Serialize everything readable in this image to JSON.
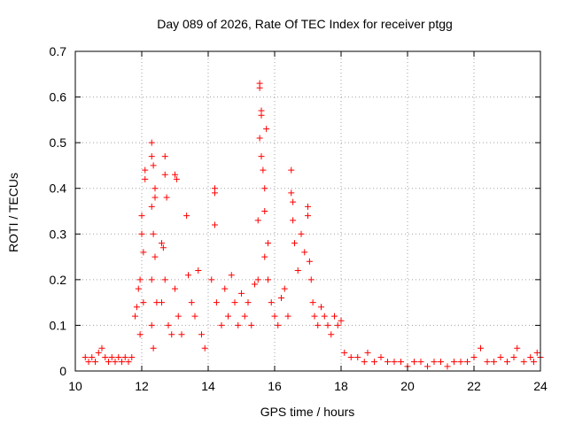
{
  "chart_data": {
    "type": "scatter",
    "title": "Day 089 of 2026, Rate Of TEC Index for receiver ptgg",
    "xlabel": "GPS time / hours",
    "ylabel": "ROTI / TECUs",
    "xlim": [
      10,
      24
    ],
    "ylim": [
      0,
      0.7
    ],
    "xticks": [
      10,
      12,
      14,
      16,
      18,
      20,
      22,
      24
    ],
    "yticks": [
      0,
      0.1,
      0.2,
      0.3,
      0.4,
      0.5,
      0.6,
      0.7
    ],
    "xtick_labels": [
      "10",
      "12",
      "14",
      "16",
      "18",
      "20",
      "22",
      "24"
    ],
    "ytick_labels": [
      "0",
      "0.1",
      "0.2",
      "0.3",
      "0.4",
      "0.5",
      "0.6",
      "0.7"
    ],
    "grid": true,
    "marker": "plus",
    "color": "#ff0000",
    "series": [
      {
        "points": [
          [
            10.3,
            0.03
          ],
          [
            10.4,
            0.02
          ],
          [
            10.5,
            0.03
          ],
          [
            10.6,
            0.02
          ],
          [
            10.7,
            0.04
          ],
          [
            10.8,
            0.05
          ],
          [
            10.9,
            0.03
          ],
          [
            11.0,
            0.02
          ],
          [
            11.1,
            0.03
          ],
          [
            11.2,
            0.02
          ],
          [
            11.3,
            0.03
          ],
          [
            11.4,
            0.02
          ],
          [
            11.5,
            0.03
          ],
          [
            11.6,
            0.02
          ],
          [
            11.7,
            0.03
          ],
          [
            11.8,
            0.12
          ],
          [
            11.85,
            0.14
          ],
          [
            11.9,
            0.18
          ],
          [
            11.95,
            0.2
          ],
          [
            12.0,
            0.3
          ],
          [
            12.0,
            0.34
          ],
          [
            12.05,
            0.26
          ],
          [
            12.1,
            0.44
          ],
          [
            12.1,
            0.42
          ],
          [
            12.05,
            0.15
          ],
          [
            11.95,
            0.08
          ],
          [
            12.3,
            0.5
          ],
          [
            12.3,
            0.47
          ],
          [
            12.35,
            0.45
          ],
          [
            12.4,
            0.4
          ],
          [
            12.4,
            0.38
          ],
          [
            12.3,
            0.36
          ],
          [
            12.35,
            0.3
          ],
          [
            12.4,
            0.25
          ],
          [
            12.3,
            0.2
          ],
          [
            12.45,
            0.15
          ],
          [
            12.3,
            0.1
          ],
          [
            12.35,
            0.05
          ],
          [
            12.6,
            0.28
          ],
          [
            12.65,
            0.27
          ],
          [
            12.7,
            0.47
          ],
          [
            12.7,
            0.43
          ],
          [
            12.75,
            0.38
          ],
          [
            12.7,
            0.2
          ],
          [
            12.6,
            0.15
          ],
          [
            12.8,
            0.1
          ],
          [
            12.9,
            0.08
          ],
          [
            13.0,
            0.43
          ],
          [
            13.05,
            0.42
          ],
          [
            13.0,
            0.18
          ],
          [
            13.1,
            0.12
          ],
          [
            13.2,
            0.08
          ],
          [
            13.35,
            0.34
          ],
          [
            13.4,
            0.21
          ],
          [
            13.5,
            0.15
          ],
          [
            13.6,
            0.12
          ],
          [
            13.7,
            0.22
          ],
          [
            13.8,
            0.08
          ],
          [
            13.9,
            0.05
          ],
          [
            14.1,
            0.2
          ],
          [
            14.2,
            0.4
          ],
          [
            14.2,
            0.39
          ],
          [
            14.2,
            0.32
          ],
          [
            14.25,
            0.15
          ],
          [
            14.4,
            0.1
          ],
          [
            14.5,
            0.18
          ],
          [
            14.6,
            0.12
          ],
          [
            14.7,
            0.21
          ],
          [
            14.8,
            0.15
          ],
          [
            14.9,
            0.1
          ],
          [
            15.0,
            0.17
          ],
          [
            15.1,
            0.12
          ],
          [
            15.2,
            0.15
          ],
          [
            15.3,
            0.1
          ],
          [
            15.4,
            0.19
          ],
          [
            15.5,
            0.2
          ],
          [
            15.5,
            0.33
          ],
          [
            15.55,
            0.63
          ],
          [
            15.55,
            0.62
          ],
          [
            15.6,
            0.57
          ],
          [
            15.6,
            0.56
          ],
          [
            15.55,
            0.51
          ],
          [
            15.6,
            0.47
          ],
          [
            15.65,
            0.44
          ],
          [
            15.7,
            0.4
          ],
          [
            15.75,
            0.53
          ],
          [
            15.7,
            0.35
          ],
          [
            15.8,
            0.28
          ],
          [
            15.7,
            0.25
          ],
          [
            15.8,
            0.2
          ],
          [
            15.9,
            0.15
          ],
          [
            16.0,
            0.12
          ],
          [
            16.1,
            0.1
          ],
          [
            16.2,
            0.16
          ],
          [
            16.3,
            0.18
          ],
          [
            16.4,
            0.12
          ],
          [
            16.5,
            0.44
          ],
          [
            16.5,
            0.39
          ],
          [
            16.55,
            0.37
          ],
          [
            16.55,
            0.33
          ],
          [
            16.6,
            0.28
          ],
          [
            16.7,
            0.22
          ],
          [
            16.8,
            0.3
          ],
          [
            16.9,
            0.26
          ],
          [
            17.0,
            0.36
          ],
          [
            17.0,
            0.34
          ],
          [
            17.05,
            0.24
          ],
          [
            17.1,
            0.2
          ],
          [
            17.15,
            0.15
          ],
          [
            17.2,
            0.12
          ],
          [
            17.3,
            0.1
          ],
          [
            17.4,
            0.14
          ],
          [
            17.5,
            0.12
          ],
          [
            17.6,
            0.1
          ],
          [
            17.7,
            0.08
          ],
          [
            17.8,
            0.12
          ],
          [
            17.9,
            0.1
          ],
          [
            18.0,
            0.11
          ],
          [
            18.1,
            0.04
          ],
          [
            18.3,
            0.03
          ],
          [
            18.5,
            0.03
          ],
          [
            18.7,
            0.02
          ],
          [
            18.8,
            0.04
          ],
          [
            19.0,
            0.02
          ],
          [
            19.2,
            0.03
          ],
          [
            19.4,
            0.02
          ],
          [
            19.6,
            0.02
          ],
          [
            19.8,
            0.02
          ],
          [
            20.0,
            0.01
          ],
          [
            20.2,
            0.02
          ],
          [
            20.4,
            0.02
          ],
          [
            20.6,
            0.01
          ],
          [
            20.8,
            0.02
          ],
          [
            21.0,
            0.02
          ],
          [
            21.2,
            0.01
          ],
          [
            21.4,
            0.02
          ],
          [
            21.6,
            0.02
          ],
          [
            21.8,
            0.02
          ],
          [
            22.0,
            0.03
          ],
          [
            22.2,
            0.05
          ],
          [
            22.4,
            0.02
          ],
          [
            22.6,
            0.02
          ],
          [
            22.8,
            0.03
          ],
          [
            23.0,
            0.02
          ],
          [
            23.2,
            0.03
          ],
          [
            23.3,
            0.05
          ],
          [
            23.5,
            0.02
          ],
          [
            23.7,
            0.03
          ],
          [
            23.8,
            0.02
          ],
          [
            23.9,
            0.04
          ],
          [
            24.0,
            0.03
          ]
        ]
      }
    ]
  }
}
